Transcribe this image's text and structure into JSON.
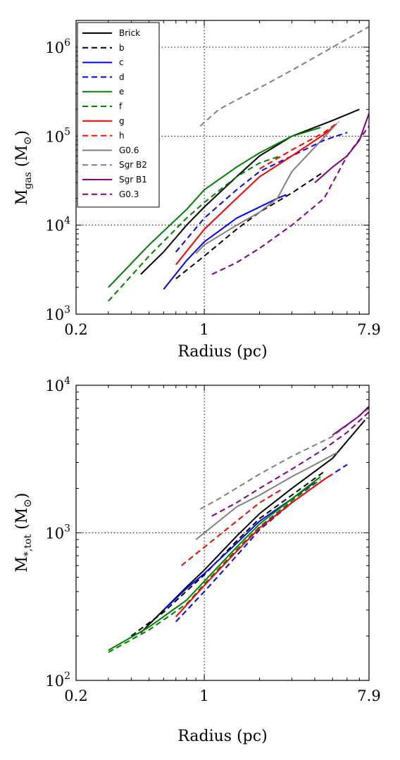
{
  "chart_data": [
    {
      "type": "line",
      "ylabel": "M",
      "ylabel_sub": "gas",
      "ylabel_unit": "(M",
      "ylabel_unit_close": ")",
      "xlabel": "Radius (pc)",
      "xscale": "log",
      "yscale": "log",
      "xlim": [
        0.2,
        7.9
      ],
      "ylim": [
        1000,
        2000000
      ],
      "xticks": [
        {
          "v": 0.2,
          "label": "0.2"
        },
        {
          "v": 1,
          "label": "1"
        },
        {
          "v": 7.9,
          "label": "7.9"
        }
      ],
      "yticks": [
        {
          "v": 1000,
          "base": "10",
          "exp": "3"
        },
        {
          "v": 10000,
          "base": "10",
          "exp": "4"
        },
        {
          "v": 100000,
          "base": "10",
          "exp": "5"
        },
        {
          "v": 1000000,
          "base": "10",
          "exp": "6"
        }
      ],
      "grid": {
        "x": [
          1
        ],
        "y": [
          10000,
          100000,
          1000000
        ]
      },
      "legend": "top-left",
      "series": [
        {
          "name": "Brick",
          "color": "#000000",
          "dash": false,
          "points": [
            [
              0.45,
              2800
            ],
            [
              0.6,
              5000
            ],
            [
              0.8,
              10000
            ],
            [
              1.0,
              16000
            ],
            [
              1.5,
              35000
            ],
            [
              2.0,
              60000
            ],
            [
              3.0,
              100000
            ],
            [
              5.0,
              150000
            ],
            [
              7.0,
              200000
            ]
          ]
        },
        {
          "name": "b",
          "color": "#000000",
          "dash": true,
          "points": [
            [
              0.7,
              2500
            ],
            [
              1.0,
              4500
            ],
            [
              1.5,
              9000
            ],
            [
              2.0,
              14000
            ],
            [
              3.0,
              23000
            ],
            [
              4.5,
              40000
            ]
          ]
        },
        {
          "name": "c",
          "color": "#0000ff",
          "dash": false,
          "points": [
            [
              0.6,
              1900
            ],
            [
              0.8,
              4000
            ],
            [
              1.0,
              6500
            ],
            [
              1.5,
              12000
            ],
            [
              2.5,
              20000
            ],
            [
              2.8,
              22000
            ]
          ]
        },
        {
          "name": "d",
          "color": "#0000ff",
          "dash": true,
          "points": [
            [
              0.7,
              5000
            ],
            [
              1.0,
              12000
            ],
            [
              1.5,
              25000
            ],
            [
              2.0,
              40000
            ],
            [
              3.0,
              60000
            ],
            [
              4.5,
              90000
            ],
            [
              6.0,
              110000
            ]
          ]
        },
        {
          "name": "e",
          "color": "#008000",
          "dash": false,
          "points": [
            [
              0.3,
              2000
            ],
            [
              0.5,
              6000
            ],
            [
              0.8,
              15000
            ],
            [
              1.0,
              25000
            ],
            [
              1.5,
              45000
            ],
            [
              2.0,
              65000
            ],
            [
              3.0,
              100000
            ],
            [
              4.3,
              125000
            ]
          ]
        },
        {
          "name": "f",
          "color": "#008000",
          "dash": true,
          "points": [
            [
              0.3,
              1400
            ],
            [
              0.5,
              4500
            ],
            [
              0.8,
              12000
            ],
            [
              1.0,
              18000
            ],
            [
              1.5,
              35000
            ],
            [
              2.0,
              50000
            ],
            [
              2.6,
              60000
            ]
          ]
        },
        {
          "name": "g",
          "color": "#ff0000",
          "dash": false,
          "points": [
            [
              0.7,
              3600
            ],
            [
              1.0,
              9000
            ],
            [
              1.5,
              20000
            ],
            [
              2.0,
              35000
            ],
            [
              3.0,
              60000
            ],
            [
              4.5,
              105000
            ],
            [
              5.0,
              125000
            ]
          ]
        },
        {
          "name": "h",
          "color": "#ff0000",
          "dash": true,
          "points": [
            [
              2.0,
              43000
            ],
            [
              3.0,
              70000
            ],
            [
              4.5,
              110000
            ],
            [
              5.4,
              145000
            ]
          ]
        },
        {
          "name": "G0.6",
          "color": "#808080",
          "dash": false,
          "points": [
            [
              0.9,
              4800
            ],
            [
              1.0,
              6000
            ],
            [
              1.5,
              10000
            ],
            [
              2.0,
              14000
            ],
            [
              2.5,
              20000
            ],
            [
              3.0,
              40000
            ],
            [
              4.0,
              75000
            ],
            [
              5.3,
              140000
            ]
          ]
        },
        {
          "name": "Sgr B2",
          "color": "#808080",
          "dash": true,
          "points": [
            [
              0.95,
              130000
            ],
            [
              1.2,
              200000
            ],
            [
              2.0,
              350000
            ],
            [
              3.0,
              550000
            ],
            [
              5.0,
              1000000
            ],
            [
              7.9,
              1700000
            ]
          ]
        },
        {
          "name": "Sgr B1",
          "color": "#800080",
          "dash": false,
          "points": [
            [
              4.0,
              30000
            ],
            [
              5.0,
              45000
            ],
            [
              6.0,
              60000
            ],
            [
              7.0,
              90000
            ],
            [
              7.9,
              180000
            ]
          ]
        },
        {
          "name": "G0.3",
          "color": "#800080",
          "dash": true,
          "points": [
            [
              1.1,
              2800
            ],
            [
              1.5,
              3800
            ],
            [
              2.0,
              5500
            ],
            [
              3.0,
              10000
            ],
            [
              4.5,
              20000
            ],
            [
              6.0,
              60000
            ],
            [
              7.9,
              130000
            ]
          ]
        }
      ]
    },
    {
      "type": "line",
      "ylabel": "M",
      "ylabel_sub": "*,tot",
      "ylabel_unit": "(M",
      "ylabel_unit_close": ")",
      "xlabel": "Radius (pc)",
      "xscale": "log",
      "yscale": "log",
      "xlim": [
        0.2,
        7.9
      ],
      "ylim": [
        100,
        10000
      ],
      "xticks": [
        {
          "v": 0.2,
          "label": "0.2"
        },
        {
          "v": 1,
          "label": "1"
        },
        {
          "v": 7.9,
          "label": "7.9"
        }
      ],
      "yticks": [
        {
          "v": 100,
          "base": "10",
          "exp": "2"
        },
        {
          "v": 1000,
          "base": "10",
          "exp": "3"
        },
        {
          "v": 10000,
          "base": "10",
          "exp": "4"
        }
      ],
      "grid": {
        "x": [
          1
        ],
        "y": [
          1000
        ]
      },
      "series": [
        {
          "name": "Brick",
          "color": "#000000",
          "dash": false,
          "points": [
            [
              0.45,
              210
            ],
            [
              0.6,
              300
            ],
            [
              0.8,
              430
            ],
            [
              1.0,
              560
            ],
            [
              1.5,
              950
            ],
            [
              2.0,
              1350
            ],
            [
              3.0,
              2000
            ],
            [
              5.0,
              3200
            ],
            [
              7.5,
              5800
            ]
          ]
        },
        {
          "name": "b",
          "color": "#000000",
          "dash": true,
          "points": [
            [
              0.4,
              200
            ],
            [
              0.6,
              290
            ],
            [
              1.0,
              520
            ],
            [
              1.5,
              880
            ],
            [
              2.0,
              1250
            ],
            [
              3.0,
              1800
            ],
            [
              4.5,
              2600
            ]
          ]
        },
        {
          "name": "c",
          "color": "#0000ff",
          "dash": false,
          "points": [
            [
              0.6,
              300
            ],
            [
              0.8,
              420
            ],
            [
              1.0,
              530
            ],
            [
              1.5,
              850
            ],
            [
              2.0,
              1200
            ],
            [
              3.0,
              1700
            ],
            [
              4.0,
              2200
            ]
          ]
        },
        {
          "name": "d",
          "color": "#0000ff",
          "dash": true,
          "points": [
            [
              0.7,
              250
            ],
            [
              1.0,
              400
            ],
            [
              1.5,
              700
            ],
            [
              2.0,
              1050
            ],
            [
              3.0,
              1600
            ],
            [
              4.5,
              2300
            ],
            [
              6.0,
              2900
            ]
          ]
        },
        {
          "name": "e",
          "color": "#008000",
          "dash": false,
          "points": [
            [
              0.3,
              160
            ],
            [
              0.5,
              230
            ],
            [
              0.8,
              350
            ],
            [
              1.0,
              470
            ],
            [
              1.5,
              800
            ],
            [
              2.0,
              1150
            ],
            [
              3.0,
              1700
            ],
            [
              4.3,
              2400
            ]
          ]
        },
        {
          "name": "f",
          "color": "#008000",
          "dash": true,
          "points": [
            [
              0.3,
              155
            ],
            [
              0.5,
              220
            ],
            [
              0.8,
              330
            ],
            [
              1.0,
              450
            ],
            [
              1.5,
              770
            ],
            [
              2.0,
              1100
            ],
            [
              3.0,
              1650
            ],
            [
              4.3,
              2300
            ]
          ]
        },
        {
          "name": "g",
          "color": "#ff0000",
          "dash": false,
          "points": [
            [
              0.7,
              270
            ],
            [
              1.0,
              440
            ],
            [
              1.5,
              750
            ],
            [
              2.0,
              1080
            ],
            [
              3.0,
              1600
            ],
            [
              4.5,
              2300
            ],
            [
              5.0,
              2500
            ]
          ]
        },
        {
          "name": "h",
          "color": "#ff0000",
          "dash": true,
          "points": [
            [
              0.75,
              600
            ],
            [
              1.0,
              800
            ],
            [
              1.5,
              1200
            ],
            [
              2.0,
              1600
            ],
            [
              2.7,
              2000
            ]
          ]
        },
        {
          "name": "G0.6",
          "color": "#808080",
          "dash": false,
          "points": [
            [
              0.9,
              900
            ],
            [
              1.0,
              1000
            ],
            [
              1.5,
              1500
            ],
            [
              2.0,
              1800
            ],
            [
              3.0,
              2400
            ],
            [
              4.0,
              2900
            ],
            [
              5.3,
              3500
            ]
          ]
        },
        {
          "name": "Sgr B2",
          "color": "#808080",
          "dash": true,
          "points": [
            [
              0.95,
              1450
            ],
            [
              1.2,
              1700
            ],
            [
              2.0,
              2500
            ],
            [
              3.0,
              3300
            ],
            [
              5.0,
              4500
            ],
            [
              7.9,
              7000
            ]
          ]
        },
        {
          "name": "Sgr B1",
          "color": "#800080",
          "dash": false,
          "points": [
            [
              5.0,
              4600
            ],
            [
              6.0,
              5400
            ],
            [
              7.0,
              6200
            ],
            [
              7.9,
              7200
            ]
          ]
        },
        {
          "name": "G0.3",
          "color": "#800080",
          "dash": true,
          "points": [
            [
              1.1,
              1300
            ],
            [
              1.5,
              1600
            ],
            [
              2.0,
              2000
            ],
            [
              3.0,
              2700
            ],
            [
              4.5,
              3700
            ],
            [
              6.0,
              4800
            ],
            [
              7.9,
              6600
            ]
          ]
        }
      ]
    }
  ]
}
